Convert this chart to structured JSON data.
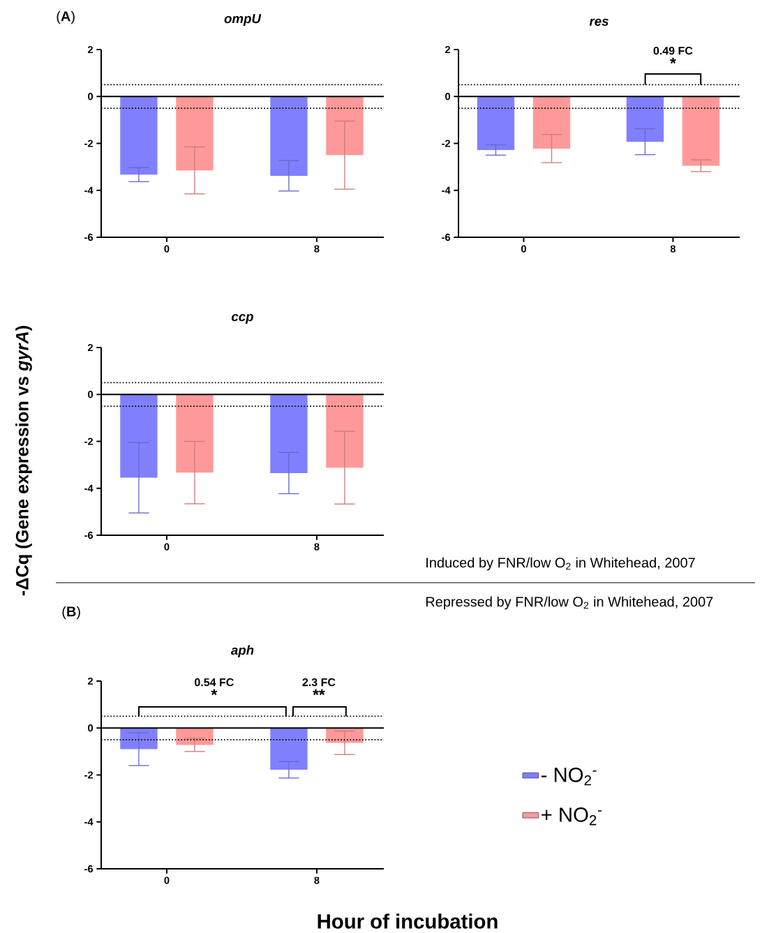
{
  "chart_data": [
    {
      "type": "bar",
      "title": "ompU",
      "ylabel": "-ΔCq (Gene expression vs *gyrA*)",
      "annotations": [
        "(**A**)"
      ],
      "categories": [
        "0",
        "8"
      ],
      "ylim": [
        -6,
        2
      ],
      "yticks": [
        -6,
        -4,
        -2,
        0,
        2
      ],
      "series": [
        {
          "color": "#8080ff",
          "values": [
            -3.33,
            -3.38
          ],
          "errors": [
            0.3,
            0.65
          ]
        },
        {
          "color": "#ff9999",
          "values": [
            -3.15,
            -2.5
          ],
          "errors": [
            1.0,
            1.45
          ]
        }
      ],
      "ref_lines": [
        {
          "axis": "y",
          "value": 0.5,
          "line_style": "dotted"
        },
        {
          "axis": "y",
          "value": -0.5,
          "line_style": "dotted"
        },
        {
          "axis": "y",
          "value": 0,
          "line_style": "solid"
        }
      ]
    },
    {
      "type": "bar",
      "title": "res",
      "annotations": [
        "0.49 FC",
        "*"
      ],
      "categories": [
        "0",
        "8"
      ],
      "ylim": [
        -6,
        2
      ],
      "yticks": [
        -6,
        -4,
        -2,
        0,
        2
      ],
      "series": [
        {
          "color": "#8080ff",
          "values": [
            -2.28,
            -1.93
          ],
          "errors": [
            0.22,
            0.55
          ]
        },
        {
          "color": "#ff9999",
          "values": [
            -2.22,
            -2.95
          ],
          "errors": [
            0.6,
            0.25
          ]
        }
      ],
      "ref_lines": [
        {
          "axis": "y",
          "value": 0.5,
          "line_style": "dotted"
        },
        {
          "axis": "y",
          "value": -0.5,
          "line_style": "dotted"
        },
        {
          "axis": "y",
          "value": 0,
          "line_style": "solid"
        }
      ]
    },
    {
      "type": "bar",
      "title": "ccp",
      "annotations": [
        "Induced by FNR/low O$_{2}$ in Whitehead, 2007"
      ],
      "categories": [
        "0",
        "8"
      ],
      "ylim": [
        -6,
        2
      ],
      "yticks": [
        -6,
        -4,
        -2,
        0,
        2
      ],
      "series": [
        {
          "color": "#8080ff",
          "values": [
            -3.55,
            -3.35
          ],
          "errors": [
            1.5,
            0.88
          ]
        },
        {
          "color": "#ff9999",
          "values": [
            -3.33,
            -3.12
          ],
          "errors": [
            1.33,
            1.55
          ]
        }
      ],
      "ref_lines": [
        {
          "axis": "y",
          "value": 0.5,
          "line_style": "dotted"
        },
        {
          "axis": "y",
          "value": -0.5,
          "line_style": "dotted"
        },
        {
          "axis": "y",
          "value": 0,
          "line_style": "solid"
        }
      ]
    },
    {
      "type": "bar",
      "title": "aph",
      "xlabel": "Hour of incubation",
      "annotations": [
        "(**B**)",
        "Repressed by FNR/low O$_{2}$ in Whitehead, 2007",
        "0.54 FC",
        "*",
        "2.3 FC",
        "**"
      ],
      "categories": [
        "0",
        "8"
      ],
      "ylim": [
        -6,
        2
      ],
      "yticks": [
        -6,
        -4,
        -2,
        0,
        2
      ],
      "legend": "right",
      "series": [
        {
          "name": "- NO$_{2}$$^{-}$",
          "color": "#8080ff",
          "values": [
            -0.9,
            -1.78
          ],
          "errors": [
            0.7,
            0.35
          ]
        },
        {
          "name": "+ NO$_{2}$$^{-}$",
          "color": "#ff9999",
          "values": [
            -0.72,
            -0.63
          ],
          "errors": [
            0.28,
            0.5
          ]
        }
      ],
      "ref_lines": [
        {
          "axis": "y",
          "value": 0.5,
          "line_style": "dotted"
        },
        {
          "axis": "y",
          "value": -0.5,
          "line_style": "dotted"
        },
        {
          "axis": "y",
          "value": 0,
          "line_style": "solid"
        }
      ]
    }
  ]
}
